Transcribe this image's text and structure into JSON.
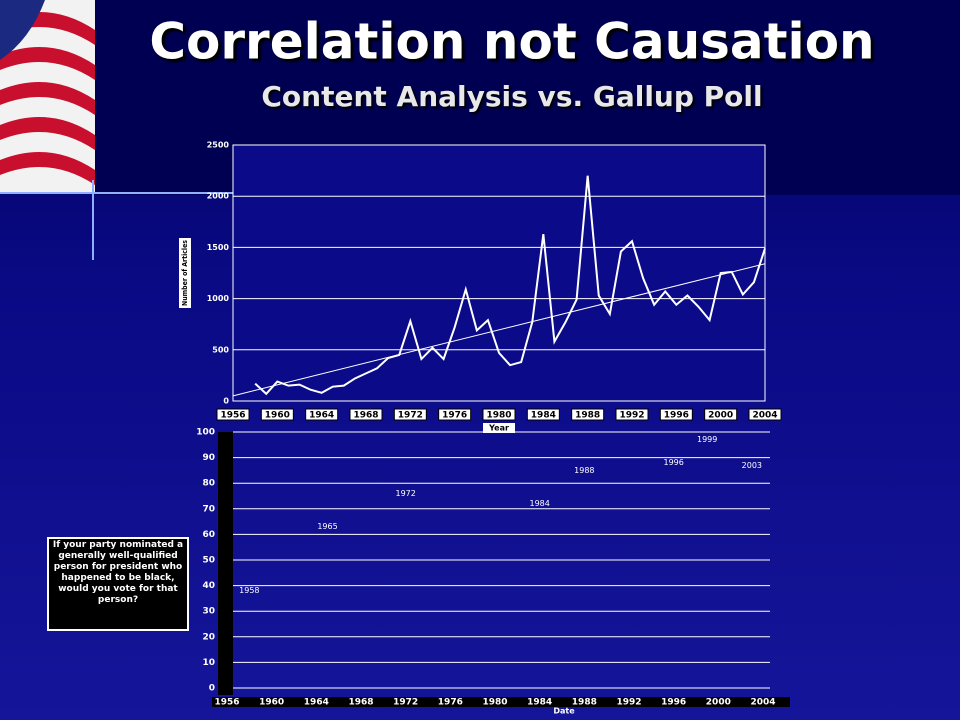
{
  "title": "Correlation not Causation",
  "subtitle": "Content Analysis vs. Gallup Poll",
  "chart_data": [
    {
      "type": "line",
      "x_label": "Year",
      "y_label": "Number of Articles",
      "x": [
        1958,
        1959,
        1960,
        1961,
        1962,
        1963,
        1964,
        1965,
        1966,
        1967,
        1968,
        1969,
        1970,
        1971,
        1972,
        1973,
        1974,
        1975,
        1976,
        1977,
        1978,
        1979,
        1980,
        1981,
        1982,
        1983,
        1984,
        1985,
        1986,
        1987,
        1988,
        1989,
        1990,
        1991,
        1992,
        1993,
        1994,
        1995,
        1996,
        1997,
        1998,
        1999,
        2000,
        2001,
        2002,
        2003,
        2004
      ],
      "series": [
        {
          "color": "#ffffff",
          "values": [
            170,
            70,
            190,
            150,
            160,
            110,
            80,
            140,
            150,
            220,
            270,
            320,
            420,
            450,
            780,
            410,
            520,
            410,
            720,
            1090,
            690,
            790,
            470,
            350,
            380,
            770,
            1630,
            580,
            770,
            990,
            2200,
            1030,
            850,
            1460,
            1560,
            1200,
            940,
            1070,
            940,
            1030,
            920,
            790,
            1250,
            1260,
            1040,
            1160,
            1490
          ]
        }
      ],
      "trendline": {
        "x": [
          1956,
          2004
        ],
        "values": [
          50,
          1340
        ]
      },
      "xlim": [
        1956,
        2004
      ],
      "ylim": [
        0,
        2500
      ],
      "xticks": [
        1956,
        1960,
        1964,
        1968,
        1972,
        1976,
        1980,
        1984,
        1988,
        1992,
        1996,
        2000,
        2004
      ],
      "yticks": [
        0,
        500,
        1000,
        1500,
        2000,
        2500
      ],
      "grid": true
    },
    {
      "type": "scatter",
      "x_label": "Date",
      "y_label": "If your party nominated a generally well-qualified person for president who happened to be black, would you vote for that person?",
      "x": [
        1958,
        1965,
        1972,
        1984,
        1988,
        1996,
        1999,
        2003
      ],
      "values": [
        38,
        63,
        76,
        72,
        85,
        88,
        97,
        87
      ],
      "xlim": [
        1956,
        2004
      ],
      "ylim": [
        0,
        100
      ],
      "xticks": [
        1956,
        1960,
        1964,
        1968,
        1972,
        1976,
        1980,
        1984,
        1988,
        1992,
        1996,
        2000,
        2004
      ],
      "yticks": [
        0,
        10,
        20,
        30,
        40,
        50,
        60,
        70,
        80,
        90,
        100
      ],
      "grid": true
    }
  ]
}
